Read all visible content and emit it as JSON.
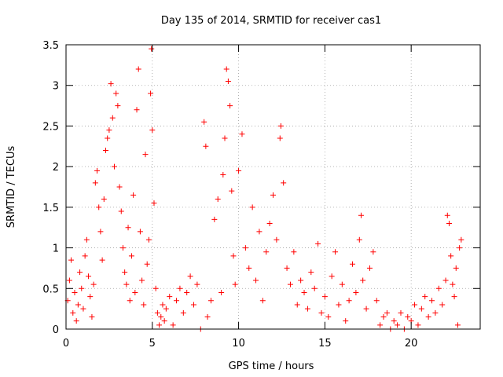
{
  "chart_data": {
    "type": "scatter",
    "title": "Day 135 of 2014, SRMTID for receiver cas1",
    "xlabel": "GPS time / hours",
    "ylabel": "SRMTID / TECUs",
    "xlim": [
      0,
      24
    ],
    "ylim": [
      0,
      3.5
    ],
    "x_ticks": [
      0,
      5,
      10,
      15,
      20
    ],
    "x_tick_labels": [
      "0",
      "5",
      "10",
      "15",
      "20"
    ],
    "y_ticks": [
      0,
      0.5,
      1,
      1.5,
      2,
      2.5,
      3,
      3.5
    ],
    "y_tick_labels": [
      "0",
      "0.5",
      "1",
      "1.5",
      "2",
      "2.5",
      "3",
      "3.5"
    ],
    "grid": true,
    "marker": "+",
    "series": [
      {
        "name": "SRMTID",
        "color": "#ff0000",
        "points": [
          [
            0.1,
            0.35
          ],
          [
            0.2,
            0.6
          ],
          [
            0.3,
            0.85
          ],
          [
            0.4,
            0.2
          ],
          [
            0.5,
            0.45
          ],
          [
            0.6,
            0.1
          ],
          [
            0.7,
            0.3
          ],
          [
            0.8,
            0.7
          ],
          [
            0.9,
            0.5
          ],
          [
            1.0,
            0.25
          ],
          [
            1.1,
            0.9
          ],
          [
            1.2,
            1.1
          ],
          [
            1.3,
            0.65
          ],
          [
            1.4,
            0.4
          ],
          [
            1.5,
            0.15
          ],
          [
            1.6,
            0.55
          ],
          [
            1.7,
            1.8
          ],
          [
            1.8,
            1.95
          ],
          [
            1.9,
            1.5
          ],
          [
            2.0,
            1.2
          ],
          [
            2.1,
            0.85
          ],
          [
            2.2,
            1.6
          ],
          [
            2.3,
            2.2
          ],
          [
            2.4,
            2.35
          ],
          [
            2.5,
            2.45
          ],
          [
            2.6,
            3.02
          ],
          [
            2.7,
            2.6
          ],
          [
            2.8,
            2.0
          ],
          [
            2.9,
            2.9
          ],
          [
            3.0,
            2.75
          ],
          [
            3.1,
            1.75
          ],
          [
            3.2,
            1.45
          ],
          [
            3.3,
            1.0
          ],
          [
            3.4,
            0.7
          ],
          [
            3.5,
            0.55
          ],
          [
            3.6,
            1.25
          ],
          [
            3.7,
            0.35
          ],
          [
            3.8,
            0.9
          ],
          [
            3.9,
            1.65
          ],
          [
            4.0,
            0.45
          ],
          [
            4.1,
            2.7
          ],
          [
            4.2,
            3.2
          ],
          [
            4.3,
            1.2
          ],
          [
            4.4,
            0.6
          ],
          [
            4.5,
            0.3
          ],
          [
            4.6,
            2.15
          ],
          [
            4.7,
            0.8
          ],
          [
            4.8,
            1.1
          ],
          [
            4.9,
            2.9
          ],
          [
            4.95,
            3.45
          ],
          [
            5.0,
            2.45
          ],
          [
            5.1,
            1.55
          ],
          [
            5.2,
            0.5
          ],
          [
            5.3,
            0.2
          ],
          [
            5.4,
            0.05
          ],
          [
            5.5,
            0.15
          ],
          [
            5.6,
            0.3
          ],
          [
            5.7,
            0.1
          ],
          [
            5.8,
            0.25
          ],
          [
            6.0,
            0.4
          ],
          [
            6.2,
            0.05
          ],
          [
            6.4,
            0.35
          ],
          [
            6.6,
            0.5
          ],
          [
            6.8,
            0.2
          ],
          [
            7.0,
            0.45
          ],
          [
            7.2,
            0.65
          ],
          [
            7.4,
            0.3
          ],
          [
            7.6,
            0.55
          ],
          [
            7.8,
            0.0
          ],
          [
            8.0,
            2.55
          ],
          [
            8.1,
            2.25
          ],
          [
            8.2,
            0.15
          ],
          [
            8.4,
            0.35
          ],
          [
            8.6,
            1.35
          ],
          [
            8.8,
            1.6
          ],
          [
            9.0,
            0.45
          ],
          [
            9.1,
            1.9
          ],
          [
            9.2,
            2.35
          ],
          [
            9.3,
            3.2
          ],
          [
            9.4,
            3.05
          ],
          [
            9.5,
            2.75
          ],
          [
            9.6,
            1.7
          ],
          [
            9.7,
            0.9
          ],
          [
            9.8,
            0.55
          ],
          [
            10.0,
            1.95
          ],
          [
            10.2,
            2.4
          ],
          [
            10.4,
            1.0
          ],
          [
            10.6,
            0.75
          ],
          [
            10.8,
            1.5
          ],
          [
            11.0,
            0.6
          ],
          [
            11.2,
            1.2
          ],
          [
            11.4,
            0.35
          ],
          [
            11.6,
            0.95
          ],
          [
            11.8,
            1.3
          ],
          [
            12.0,
            1.65
          ],
          [
            12.2,
            1.1
          ],
          [
            12.4,
            2.35
          ],
          [
            12.45,
            2.5
          ],
          [
            12.6,
            1.8
          ],
          [
            12.8,
            0.75
          ],
          [
            13.0,
            0.55
          ],
          [
            13.2,
            0.95
          ],
          [
            13.4,
            0.3
          ],
          [
            13.6,
            0.6
          ],
          [
            13.8,
            0.45
          ],
          [
            14.0,
            0.25
          ],
          [
            14.2,
            0.7
          ],
          [
            14.4,
            0.5
          ],
          [
            14.6,
            1.05
          ],
          [
            14.8,
            0.2
          ],
          [
            15.0,
            0.4
          ],
          [
            15.2,
            0.15
          ],
          [
            15.4,
            0.65
          ],
          [
            15.6,
            0.95
          ],
          [
            15.8,
            0.3
          ],
          [
            16.0,
            0.55
          ],
          [
            16.2,
            0.1
          ],
          [
            16.4,
            0.35
          ],
          [
            16.6,
            0.8
          ],
          [
            16.8,
            0.45
          ],
          [
            17.0,
            1.1
          ],
          [
            17.1,
            1.4
          ],
          [
            17.2,
            0.6
          ],
          [
            17.4,
            0.25
          ],
          [
            17.6,
            0.75
          ],
          [
            17.8,
            0.95
          ],
          [
            18.0,
            0.35
          ],
          [
            18.2,
            0.05
          ],
          [
            18.4,
            0.15
          ],
          [
            18.6,
            0.2
          ],
          [
            18.8,
            0.0
          ],
          [
            19.0,
            0.1
          ],
          [
            19.2,
            0.05
          ],
          [
            19.4,
            0.2
          ],
          [
            19.6,
            0.0
          ],
          [
            19.8,
            0.15
          ],
          [
            20.0,
            0.1
          ],
          [
            20.2,
            0.3
          ],
          [
            20.4,
            0.05
          ],
          [
            20.6,
            0.25
          ],
          [
            20.8,
            0.4
          ],
          [
            21.0,
            0.15
          ],
          [
            21.2,
            0.35
          ],
          [
            21.4,
            0.2
          ],
          [
            21.6,
            0.5
          ],
          [
            21.8,
            0.3
          ],
          [
            22.0,
            0.6
          ],
          [
            22.1,
            1.4
          ],
          [
            22.2,
            1.3
          ],
          [
            22.3,
            0.9
          ],
          [
            22.4,
            0.55
          ],
          [
            22.5,
            0.4
          ],
          [
            22.6,
            0.75
          ],
          [
            22.7,
            0.05
          ],
          [
            22.8,
            1.0
          ],
          [
            22.9,
            1.1
          ]
        ]
      }
    ]
  }
}
